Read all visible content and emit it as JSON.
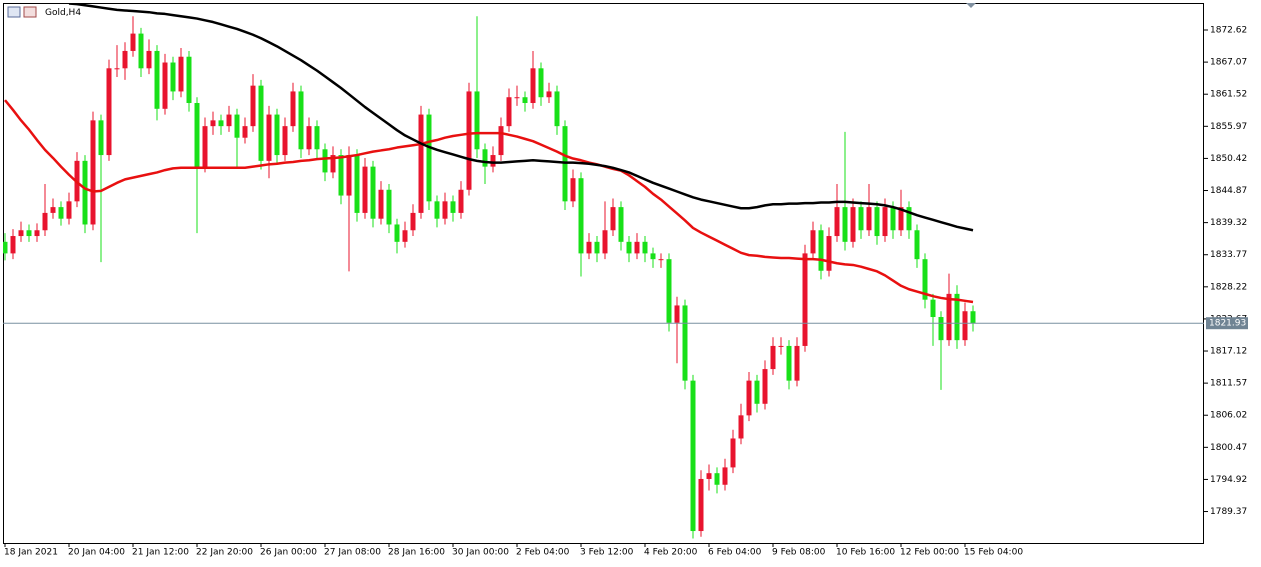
{
  "chart_data": {
    "type": "candlestick",
    "title": "Gold,H4",
    "categories": [
      "18 Jan 2021",
      null,
      null,
      null,
      null,
      null,
      null,
      null,
      "20 Jan 04:00",
      null,
      null,
      null,
      null,
      null,
      null,
      null,
      "21 Jan 12:00",
      null,
      null,
      null,
      null,
      null,
      null,
      null,
      "22 Jan 20:00",
      null,
      null,
      null,
      null,
      null,
      null,
      null,
      "26 Jan 00:00",
      null,
      null,
      null,
      null,
      null,
      null,
      null,
      "27 Jan 08:00",
      null,
      null,
      null,
      null,
      null,
      null,
      null,
      "28 Jan 16:00",
      null,
      null,
      null,
      null,
      null,
      null,
      null,
      "30 Jan 00:00",
      null,
      null,
      null,
      null,
      null,
      null,
      null,
      "2 Feb 04:00",
      null,
      null,
      null,
      null,
      null,
      null,
      null,
      "3 Feb 12:00",
      null,
      null,
      null,
      null,
      null,
      null,
      null,
      "4 Feb 20:00",
      null,
      null,
      null,
      null,
      null,
      null,
      null,
      "6 Feb 04:00",
      null,
      null,
      null,
      null,
      null,
      null,
      null,
      "9 Feb 08:00",
      null,
      null,
      null,
      null,
      null,
      null,
      null,
      "10 Feb 16:00",
      null,
      null,
      null,
      null,
      null,
      null,
      null,
      "12 Feb 00:00",
      null,
      null,
      null,
      null,
      null,
      null,
      null,
      "15 Feb 04:00",
      null
    ],
    "open": [
      1836,
      1834,
      1837,
      1838,
      1837,
      1838,
      1841,
      1842,
      1840,
      1843,
      1850,
      1839,
      1857,
      1851,
      1866,
      1866,
      1869,
      1872,
      1866,
      1869,
      1859,
      1867,
      1862,
      1868,
      1860,
      1849,
      1856,
      1857,
      1856,
      1858,
      1854,
      1856,
      1863,
      1850,
      1858,
      1851,
      1856,
      1862,
      1852,
      1856,
      1852,
      1848,
      1851,
      1844,
      1851,
      1841,
      1849,
      1840,
      1845,
      1839,
      1836,
      1838,
      1841,
      1858,
      1843,
      1840,
      1843,
      1841,
      1845,
      1862,
      1852,
      1849,
      1851,
      1856,
      1861,
      1861,
      1860,
      1866,
      1861,
      1862,
      1856,
      1843,
      1847,
      1834,
      1836,
      1834,
      1838,
      1842,
      1836,
      1834,
      1836,
      1834,
      1833,
      1833,
      1822,
      1825,
      1812,
      1786,
      1795,
      1796,
      1794,
      1797,
      1802,
      1806,
      1812,
      1808,
      1814,
      1818,
      1818,
      1812,
      1818,
      1834,
      1838,
      1831,
      1837,
      1842,
      1836,
      1842,
      1838,
      1842,
      1837,
      1842,
      1838,
      1842,
      1838,
      1833,
      1826,
      1823,
      1819,
      1827,
      1819,
      1824
    ],
    "high": [
      1837.5,
      1838.2,
      1839.5,
      1839,
      1839.2,
      1846,
      1843.5,
      1843,
      1844.5,
      1851.5,
      1851,
      1858.5,
      1858,
      1867.5,
      1870,
      1870.5,
      1875,
      1873,
      1871,
      1870,
      1868.5,
      1868,
      1869.5,
      1869,
      1861,
      1857.5,
      1858.5,
      1858,
      1859.5,
      1859,
      1857.5,
      1865,
      1864,
      1859.5,
      1859,
      1857.5,
      1863.5,
      1863,
      1857.5,
      1857,
      1853,
      1852.5,
      1852,
      1852.5,
      1852,
      1850.5,
      1850,
      1846.5,
      1846,
      1840,
      1839.5,
      1842.5,
      1859.5,
      1859,
      1844,
      1844.5,
      1844,
      1846.5,
      1863.5,
      1875,
      1853,
      1852.5,
      1857.5,
      1862.5,
      1863,
      1862,
      1869,
      1867,
      1863.5,
      1863,
      1857,
      1848.5,
      1848,
      1837.5,
      1837,
      1843,
      1843.5,
      1843,
      1837,
      1837.5,
      1837,
      1835,
      1834,
      1834,
      1826.5,
      1826,
      1813,
      1796.5,
      1797.5,
      1797,
      1798.5,
      1803.5,
      1808,
      1813.5,
      1813,
      1815.5,
      1819.5,
      1819.5,
      1819,
      1819.5,
      1835.5,
      1839.5,
      1839,
      1838.5,
      1846,
      1855,
      1843.5,
      1843,
      1846,
      1843,
      1843.5,
      1843,
      1845,
      1843,
      1839,
      1834,
      1827,
      1824,
      1830.5,
      1828.5,
      1825.5,
      1825
    ],
    "low": [
      1832.8,
      1833,
      1836,
      1836,
      1836,
      1837,
      1840,
      1838.8,
      1839,
      1842,
      1837.5,
      1838,
      1832.5,
      1850,
      1864.5,
      1864,
      1868,
      1864.5,
      1865,
      1857,
      1858,
      1860.5,
      1861,
      1858.5,
      1837.5,
      1848,
      1854.5,
      1854.5,
      1855,
      1849,
      1853,
      1855,
      1848.5,
      1847,
      1849.5,
      1850,
      1855,
      1850.5,
      1851,
      1850.5,
      1846.5,
      1847,
      1842.5,
      1830.9,
      1839.5,
      1840,
      1838.5,
      1839,
      1837.5,
      1834,
      1835,
      1837,
      1840,
      1841.5,
      1838.5,
      1839,
      1839.5,
      1840,
      1844,
      1850.5,
      1846,
      1848,
      1850,
      1855,
      1859.5,
      1858.5,
      1859,
      1859.5,
      1860,
      1854.5,
      1841.5,
      1842,
      1830,
      1833,
      1832.5,
      1833,
      1837,
      1834.5,
      1832.5,
      1833,
      1832.5,
      1831.5,
      1831.5,
      1820.5,
      1815,
      1810.5,
      1784.7,
      1785,
      1793,
      1792.5,
      1793,
      1796,
      1801,
      1805,
      1806.5,
      1807,
      1813,
      1816.5,
      1810.5,
      1811,
      1817,
      1833,
      1829.5,
      1830,
      1836,
      1834.5,
      1835,
      1836.5,
      1837,
      1835.5,
      1836,
      1836.5,
      1837,
      1836.5,
      1831.5,
      1824.5,
      1818,
      1810.4,
      1818,
      1817.5,
      1818,
      1820.5
    ],
    "close": [
      1834,
      1837,
      1838,
      1837,
      1838,
      1841,
      1842,
      1840,
      1843,
      1850,
      1839,
      1857,
      1851,
      1866,
      1866,
      1869,
      1872,
      1866,
      1869,
      1859,
      1867,
      1862,
      1868,
      1860,
      1849,
      1856,
      1857,
      1856,
      1858,
      1854,
      1856,
      1863,
      1850,
      1858,
      1851,
      1856,
      1862,
      1852,
      1856,
      1852,
      1848,
      1851,
      1844,
      1851,
      1841,
      1849,
      1840,
      1845,
      1839,
      1836,
      1838,
      1841,
      1858,
      1843,
      1840,
      1843,
      1841,
      1845,
      1862,
      1852,
      1849,
      1851,
      1856,
      1861,
      1861,
      1860,
      1866,
      1861,
      1862,
      1856,
      1843,
      1847,
      1834,
      1836,
      1834,
      1838,
      1842,
      1836,
      1834,
      1836,
      1834,
      1833,
      1833,
      1822,
      1825,
      1812,
      1786,
      1795,
      1796,
      1794,
      1797,
      1802,
      1806,
      1812,
      1808,
      1814,
      1818,
      1818,
      1812,
      1818,
      1834,
      1838,
      1831,
      1837,
      1842,
      1836,
      1842,
      1838,
      1842,
      1837,
      1842,
      1838,
      1842,
      1838,
      1833,
      1826,
      1823,
      1819,
      1827,
      1819,
      1824,
      1821.93
    ],
    "up_color": "#e8142e",
    "down_color": "#18e018",
    "series": [
      {
        "color": "#e81010",
        "values": [
          1860.5,
          1858.8,
          1857,
          1855.4,
          1853.6,
          1851.9,
          1850.5,
          1849,
          1847.6,
          1846.3,
          1845.2,
          1844.7,
          1844.8,
          1845.5,
          1846.2,
          1846.8,
          1847.1,
          1847.4,
          1847.7,
          1848,
          1848.4,
          1848.7,
          1848.8,
          1848.8,
          1848.8,
          1848.8,
          1848.8,
          1848.8,
          1848.8,
          1848.8,
          1848.8,
          1849,
          1849.2,
          1849.4,
          1849.5,
          1849.7,
          1849.8,
          1850,
          1850.1,
          1850.3,
          1850.4,
          1850.5,
          1850.6,
          1850.8,
          1851,
          1851.3,
          1851.6,
          1851.8,
          1852,
          1852.3,
          1852.5,
          1852.7,
          1852.9,
          1853.3,
          1853.6,
          1854,
          1854.3,
          1854.5,
          1854.7,
          1854.8,
          1854.8,
          1854.8,
          1854.8,
          1854.5,
          1854.2,
          1853.8,
          1853.4,
          1852.8,
          1852.2,
          1851.6,
          1850.9,
          1850.4,
          1850.1,
          1849.7,
          1849.4,
          1849,
          1848.6,
          1848.3,
          1847.5,
          1846.5,
          1845.5,
          1844.3,
          1843.3,
          1842.1,
          1840.9,
          1839.7,
          1838.4,
          1837.6,
          1836.9,
          1836.2,
          1835.5,
          1834.8,
          1834.1,
          1833.7,
          1833.6,
          1833.4,
          1833.3,
          1833.2,
          1833.2,
          1833.1,
          1833,
          1833,
          1832.9,
          1832.6,
          1832.3,
          1832.1,
          1832,
          1831.7,
          1831.3,
          1830.9,
          1830.2,
          1829.3,
          1828.4,
          1827.8,
          1827.4,
          1827,
          1826.6,
          1826.3,
          1826.1,
          1826,
          1825.8,
          1825.6
        ]
      },
      {
        "color": "#000000",
        "values": [
          null,
          null,
          null,
          null,
          null,
          null,
          null,
          null,
          1877.2,
          1877.1,
          1876.9,
          1876.7,
          1876.5,
          1876.3,
          1876.1,
          1876,
          1875.9,
          1875.8,
          1875.7,
          1875.5,
          1875.4,
          1875.2,
          1875,
          1874.8,
          1874.6,
          1874.3,
          1874,
          1873.6,
          1873.2,
          1872.8,
          1872.3,
          1871.8,
          1871.2,
          1870.5,
          1869.8,
          1869,
          1868.2,
          1867.4,
          1866.5,
          1865.6,
          1864.6,
          1863.6,
          1862.6,
          1861.5,
          1860.4,
          1859.3,
          1858.3,
          1857.3,
          1856.3,
          1855.3,
          1854.4,
          1853.7,
          1853,
          1852.4,
          1851.9,
          1851.5,
          1851.1,
          1850.7,
          1850.3,
          1850,
          1849.8,
          1849.7,
          1849.7,
          1849.8,
          1849.9,
          1850,
          1850.1,
          1850,
          1849.9,
          1849.8,
          1849.7,
          1849.7,
          1849.6,
          1849.5,
          1849.3,
          1849.1,
          1848.8,
          1848.4,
          1848,
          1847.4,
          1846.8,
          1846.2,
          1845.7,
          1845.2,
          1844.7,
          1844.2,
          1843.7,
          1843.3,
          1843,
          1842.7,
          1842.4,
          1842.1,
          1841.8,
          1841.8,
          1842,
          1842.3,
          1842.5,
          1842.5,
          1842.6,
          1842.6,
          1842.7,
          1842.7,
          1842.8,
          1842.8,
          1842.9,
          1842.9,
          1842.8,
          1842.7,
          1842.6,
          1842.5,
          1842.3,
          1842,
          1841.6,
          1841.1,
          1840.6,
          1840.2,
          1839.8,
          1839.4,
          1839,
          1838.6,
          1838.3,
          1838
        ]
      }
    ],
    "price_line": 1821.93,
    "ylim": [
      1783.93,
      1877.29
    ],
    "yticks": [
      1789.37,
      1794.92,
      1800.47,
      1806.02,
      1811.57,
      1817.12,
      1822.67,
      1828.22,
      1833.77,
      1839.32,
      1844.87,
      1850.42,
      1855.97,
      1861.52,
      1867.07,
      1872.62
    ]
  }
}
